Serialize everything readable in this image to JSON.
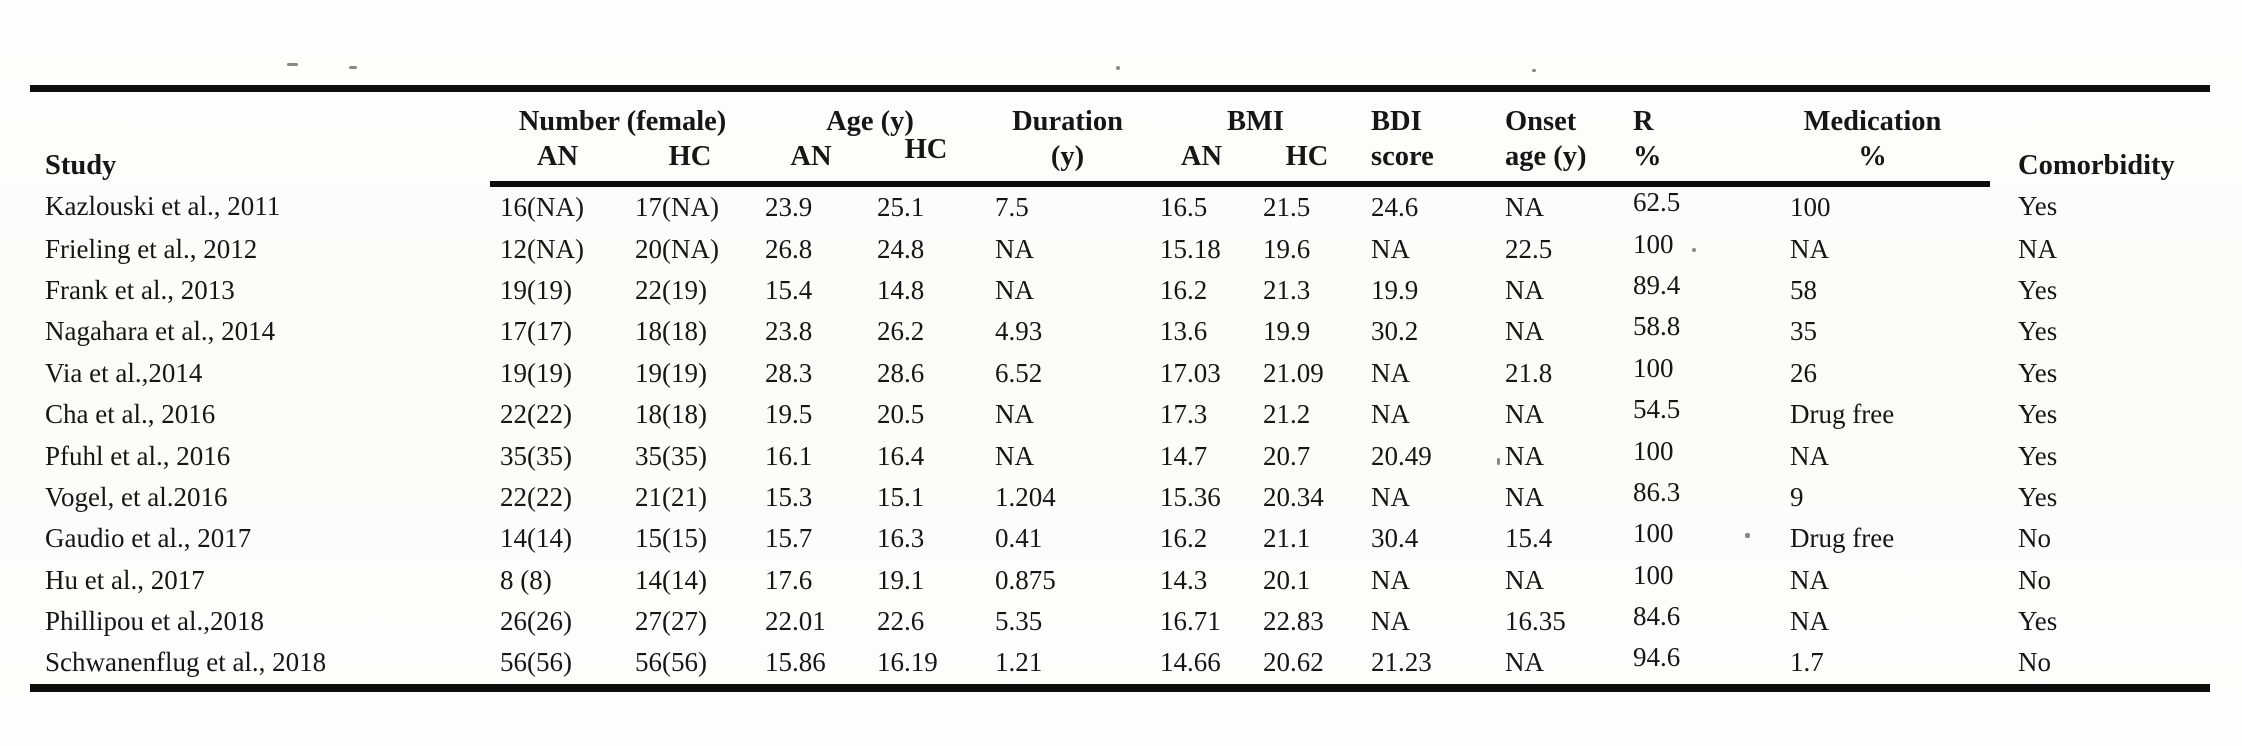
{
  "table": {
    "header": {
      "study": "Study",
      "groups": [
        {
          "label": "Number (female)",
          "sub": [
            "AN",
            "HC"
          ]
        },
        {
          "label": "Age (y)",
          "sub": [
            "AN",
            "HC"
          ]
        },
        {
          "label": "Duration",
          "sub": [
            "(y)"
          ]
        },
        {
          "label": "BMI",
          "sub": [
            "AN",
            "HC"
          ]
        },
        {
          "label": "BDI",
          "sub": [
            "score"
          ]
        },
        {
          "label": "Onset",
          "sub": [
            "age (y)"
          ]
        },
        {
          "label": "R",
          "sub": [
            "%"
          ]
        },
        {
          "label": "Medication",
          "sub": [
            "%"
          ]
        },
        {
          "label": "Comorbidity",
          "sub": []
        }
      ]
    },
    "rows": [
      [
        "Kazlouski et al., 2011",
        "16(NA)",
        "17(NA)",
        "23.9",
        "25.1",
        "7.5",
        "16.5",
        "21.5",
        "24.6",
        "NA",
        "62.5",
        "100",
        "Yes"
      ],
      [
        "Frieling et al., 2012",
        "12(NA)",
        "20(NA)",
        "26.8",
        "24.8",
        "NA",
        "15.18",
        "19.6",
        "NA",
        "22.5",
        "100",
        "NA",
        "NA"
      ],
      [
        "Frank et al., 2013",
        "19(19)",
        "22(19)",
        "15.4",
        "14.8",
        "NA",
        "16.2",
        "21.3",
        "19.9",
        "NA",
        "89.4",
        "58",
        "Yes"
      ],
      [
        "Nagahara et al., 2014",
        "17(17)",
        "18(18)",
        "23.8",
        "26.2",
        "4.93",
        "13.6",
        "19.9",
        "30.2",
        "NA",
        "58.8",
        "35",
        "Yes"
      ],
      [
        "Via et al.,2014",
        "19(19)",
        "19(19)",
        "28.3",
        "28.6",
        "6.52",
        "17.03",
        "21.09",
        "NA",
        "21.8",
        "100",
        "26",
        "Yes"
      ],
      [
        "Cha et al., 2016",
        "22(22)",
        "18(18)",
        "19.5",
        "20.5",
        "NA",
        "17.3",
        "21.2",
        "NA",
        "NA",
        "54.5",
        "Drug free",
        "Yes"
      ],
      [
        "Pfuhl et al., 2016",
        "35(35)",
        "35(35)",
        "16.1",
        "16.4",
        "NA",
        "14.7",
        "20.7",
        "20.49",
        "NA",
        "100",
        "NA",
        "Yes"
      ],
      [
        "Vogel, et al.2016",
        "22(22)",
        "21(21)",
        "15.3",
        "15.1",
        "1.204",
        "15.36",
        "20.34",
        "NA",
        "NA",
        "86.3",
        "9",
        "Yes"
      ],
      [
        "Gaudio et al., 2017",
        "14(14)",
        "15(15)",
        "15.7",
        "16.3",
        "0.41",
        "16.2",
        "21.1",
        "30.4",
        "15.4",
        "100",
        "Drug free",
        "No"
      ],
      [
        "Hu et al., 2017",
        "8 (8)",
        "14(14)",
        "17.6",
        "19.1",
        "0.875",
        "14.3",
        "20.1",
        "NA",
        "NA",
        "100",
        "NA",
        "No"
      ],
      [
        "Phillipou et al.,2018",
        "26(26)",
        "27(27)",
        "22.01",
        "22.6",
        "5.35",
        "16.71",
        "22.83",
        "NA",
        "16.35",
        "84.6",
        "NA",
        "Yes"
      ],
      [
        "Schwanenflug et al., 2018",
        "56(56)",
        "56(56)",
        "15.86",
        "16.19",
        "1.21",
        "14.66",
        "20.62",
        "21.23",
        "NA",
        "94.6",
        "1.7",
        "No"
      ]
    ]
  }
}
